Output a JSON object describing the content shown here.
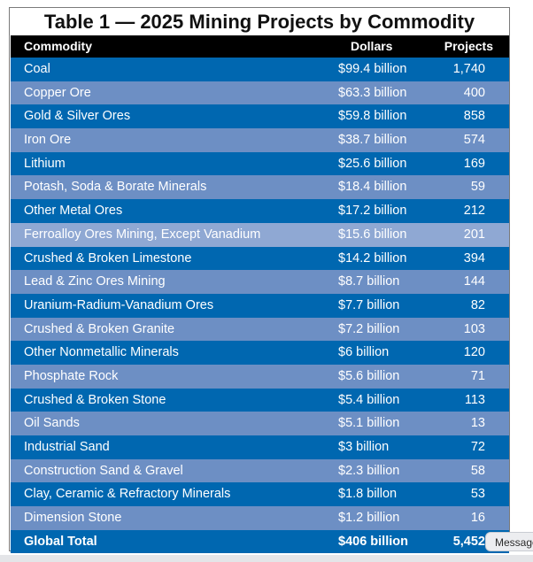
{
  "title": "Table 1 — 2025 Mining Projects by Commodity",
  "columns": {
    "commodity": "Commodity",
    "dollars": "Dollars",
    "projects": "Projects"
  },
  "rows": [
    {
      "commodity": "Coal",
      "dollars": "$99.4 billion",
      "projects": "1,740"
    },
    {
      "commodity": "Copper Ore",
      "dollars": "$63.3 billion",
      "projects": "400"
    },
    {
      "commodity": "Gold & Silver Ores",
      "dollars": "$59.8 billion",
      "projects": "858"
    },
    {
      "commodity": "Iron Ore",
      "dollars": "$38.7 billion",
      "projects": "574"
    },
    {
      "commodity": "Lithium",
      "dollars": "$25.6 billion",
      "projects": "169"
    },
    {
      "commodity": "Potash, Soda & Borate Minerals",
      "dollars": "$18.4 billion",
      "projects": "59"
    },
    {
      "commodity": "Other Metal Ores",
      "dollars": "$17.2 billion",
      "projects": "212"
    },
    {
      "commodity": "Ferroalloy Ores Mining, Except Vanadium",
      "dollars": "$15.6 billion",
      "projects": "201"
    },
    {
      "commodity": "Crushed & Broken Limestone",
      "dollars": "$14.2 billion",
      "projects": "394"
    },
    {
      "commodity": "Lead & Zinc Ores Mining",
      "dollars": "$8.7 billion",
      "projects": "144"
    },
    {
      "commodity": "Uranium-Radium-Vanadium Ores",
      "dollars": "$7.7 billion",
      "projects": "82"
    },
    {
      "commodity": "Crushed & Broken Granite",
      "dollars": "$7.2 billion",
      "projects": "103"
    },
    {
      "commodity": "Other Nonmetallic Minerals",
      "dollars": "$6 billion",
      "projects": "120"
    },
    {
      "commodity": "Phosphate Rock",
      "dollars": "$5.6 billion",
      "projects": "71"
    },
    {
      "commodity": "Crushed & Broken Stone",
      "dollars": "$5.4 billion",
      "projects": "113"
    },
    {
      "commodity": "Oil Sands",
      "dollars": "$5.1 billion",
      "projects": "13"
    },
    {
      "commodity": "Industrial Sand",
      "dollars": "$3 billion",
      "projects": "72"
    },
    {
      "commodity": "Construction Sand & Gravel",
      "dollars": "$2.3 billion",
      "projects": "58"
    },
    {
      "commodity": "Clay, Ceramic & Refractory Minerals",
      "dollars": "$1.8 billon",
      "projects": "53"
    },
    {
      "commodity": "Dimension Stone",
      "dollars": "$1.2 billion",
      "projects": "16"
    }
  ],
  "total": {
    "commodity": "Global Total",
    "dollars": "$406 billion",
    "projects": "5,452"
  },
  "message_button": "Message",
  "colors": {
    "header": "#000000",
    "row_dark": "#0067b0",
    "row_light": "#6d8fc4",
    "row_highlight": "#8fa8d3",
    "text": "#ffffff"
  }
}
